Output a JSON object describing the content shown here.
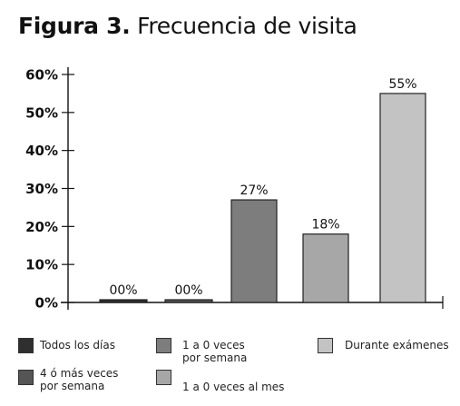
{
  "title": {
    "figure": "Figura 3.",
    "text": "Frecuencia de visita"
  },
  "chart_data": {
    "type": "bar",
    "title": "Figura 3. Frecuencia de visita",
    "xlabel": "",
    "ylabel": "",
    "ylim": [
      0,
      60
    ],
    "yticks": [
      0,
      10,
      20,
      30,
      40,
      50,
      60
    ],
    "ytick_labels": [
      "0%",
      "10%",
      "20%",
      "30%",
      "40%",
      "50%",
      "60%"
    ],
    "grid": false,
    "legend_position": "bottom",
    "categories": [
      "Todos los días",
      "4 ó más veces por semana",
      "1 a 0 veces por semana",
      "1 a 0 veces al mes",
      "Durante exámenes"
    ],
    "values": [
      0,
      0,
      27,
      18,
      55
    ],
    "value_labels": [
      "00%",
      "00%",
      "27%",
      "18%",
      "55%"
    ],
    "colors": [
      "#2f2f2f",
      "#555555",
      "#7d7d7d",
      "#a7a7a7",
      "#c3c3c3"
    ]
  },
  "legend": [
    {
      "label": "Todos los días",
      "color": "#2f2f2f"
    },
    {
      "label": "4 ó más veces\npor semana",
      "color": "#555555"
    },
    {
      "label": "1 a 0 veces\npor semana",
      "color": "#7d7d7d"
    },
    {
      "label": "1 a 0 veces al mes",
      "color": "#a7a7a7"
    },
    {
      "label": "Durante exámenes",
      "color": "#c3c3c3"
    }
  ]
}
